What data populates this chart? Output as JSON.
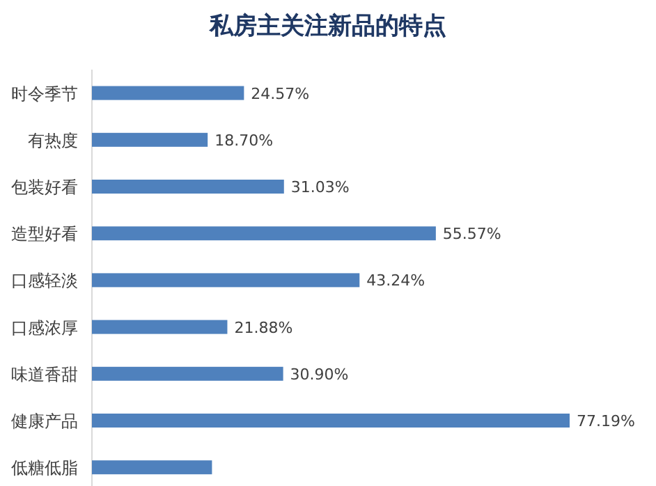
{
  "chart_data": {
    "type": "bar",
    "orientation": "horizontal",
    "title": "私房主关注新品的特点",
    "categories": [
      "时令季节",
      "有热度",
      "包装好看",
      "造型好看",
      "口感轻淡",
      "口感浓厚",
      "味道香甜",
      "健康产品",
      "低糖低脂"
    ],
    "values": [
      24.57,
      18.7,
      31.03,
      55.57,
      43.24,
      21.88,
      30.9,
      77.19,
      19.4
    ],
    "value_labels": [
      "24.57%",
      "18.70%",
      "31.03%",
      "55.57%",
      "43.24%",
      "21.88%",
      "30.90%",
      "77.19%",
      null
    ],
    "color": "#4f81bd"
  }
}
